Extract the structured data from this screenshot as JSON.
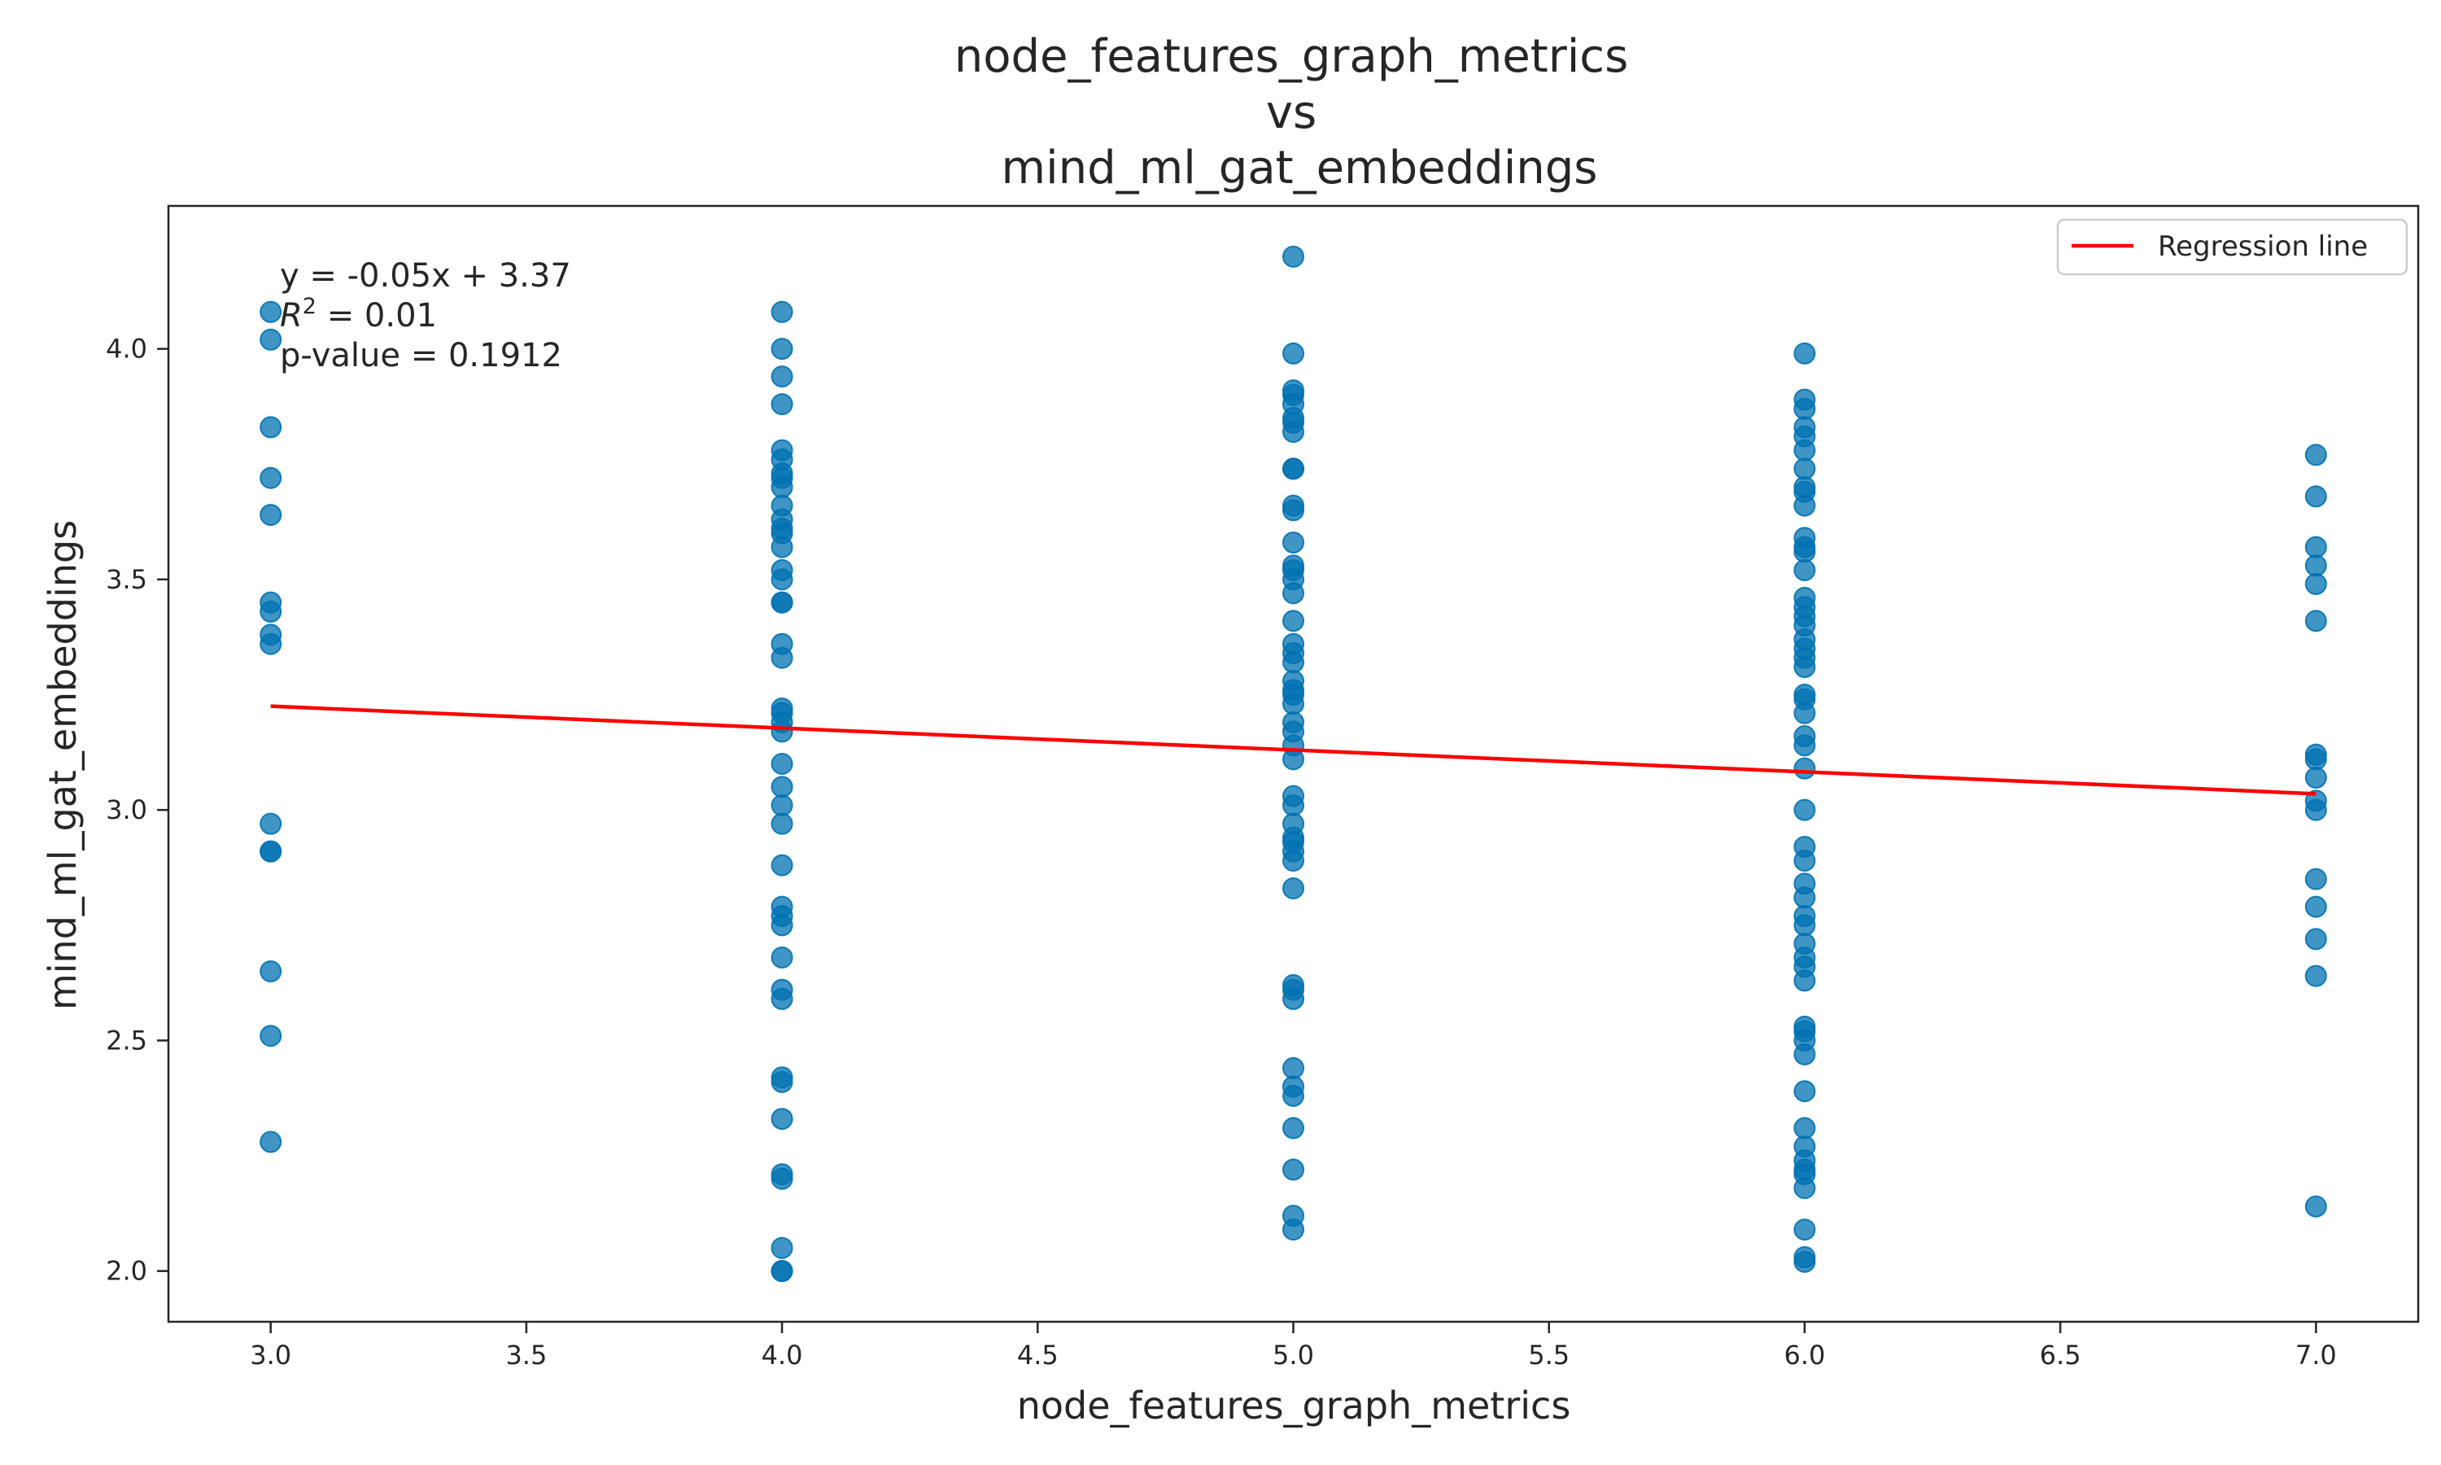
{
  "chart_data": {
    "type": "scatter",
    "title_lines": [
      "node_features_graph_metrics",
      "vs",
      "mind_ml_gat_embeddings"
    ],
    "xlabel": "node_features_graph_metrics",
    "ylabel": "mind_ml_gat_embeddings",
    "xlim": [
      2.8,
      7.2
    ],
    "ylim": [
      1.89,
      4.31
    ],
    "xticks": [
      "3.0",
      "3.5",
      "4.0",
      "4.5",
      "5.0",
      "5.5",
      "6.0",
      "6.5",
      "7.0"
    ],
    "yticks": [
      "2.0",
      "2.5",
      "3.0",
      "3.5",
      "4.0"
    ],
    "grid": false,
    "legend_position": "top-right",
    "annotation": {
      "equation": "y = -0.05x + 3.37",
      "r_squared_label": "R",
      "r_squared_sup": "2",
      "r_squared_value": " = 0.01",
      "p_value": "p-value = 0.1912"
    },
    "colors": {
      "points": "#0072B2",
      "regression": "#ff0000"
    },
    "regression": {
      "name": "Regression line",
      "points": [
        [
          3.0,
          3.225
        ],
        [
          7.0,
          3.035
        ]
      ]
    },
    "series": [
      {
        "x": 3.0,
        "y": [
          4.08,
          4.02,
          3.83,
          3.72,
          3.64,
          3.45,
          3.43,
          3.38,
          3.36,
          2.97,
          2.91,
          2.91,
          2.65,
          2.51,
          2.28
        ]
      },
      {
        "x": 4.0,
        "y": [
          4.08,
          4.0,
          3.94,
          3.88,
          3.78,
          3.76,
          3.73,
          3.72,
          3.7,
          3.66,
          3.63,
          3.61,
          3.6,
          3.57,
          3.52,
          3.5,
          3.45,
          3.45,
          3.36,
          3.33,
          3.22,
          3.21,
          3.19,
          3.17,
          3.1,
          3.05,
          3.01,
          2.97,
          2.88,
          2.79,
          2.77,
          2.75,
          2.68,
          2.61,
          2.59,
          2.42,
          2.41,
          2.33,
          2.21,
          2.2,
          2.05,
          2.0,
          2.0
        ]
      },
      {
        "x": 5.0,
        "y": [
          4.2,
          3.99,
          3.91,
          3.9,
          3.88,
          3.85,
          3.84,
          3.82,
          3.74,
          3.74,
          3.66,
          3.65,
          3.58,
          3.53,
          3.52,
          3.5,
          3.47,
          3.41,
          3.36,
          3.34,
          3.32,
          3.28,
          3.26,
          3.25,
          3.23,
          3.19,
          3.17,
          3.14,
          3.11,
          3.03,
          3.01,
          2.97,
          2.94,
          2.93,
          2.91,
          2.89,
          2.83,
          2.62,
          2.61,
          2.59,
          2.44,
          2.4,
          2.38,
          2.31,
          2.22,
          2.12,
          2.09
        ]
      },
      {
        "x": 6.0,
        "y": [
          3.99,
          3.89,
          3.87,
          3.83,
          3.81,
          3.78,
          3.74,
          3.7,
          3.69,
          3.66,
          3.59,
          3.57,
          3.56,
          3.52,
          3.46,
          3.44,
          3.42,
          3.4,
          3.37,
          3.35,
          3.33,
          3.31,
          3.25,
          3.24,
          3.21,
          3.16,
          3.14,
          3.09,
          3.0,
          2.92,
          2.89,
          2.84,
          2.81,
          2.77,
          2.75,
          2.71,
          2.68,
          2.66,
          2.63,
          2.53,
          2.52,
          2.5,
          2.47,
          2.39,
          2.31,
          2.27,
          2.24,
          2.22,
          2.21,
          2.18,
          2.09,
          2.03,
          2.02
        ]
      },
      {
        "x": 7.0,
        "y": [
          3.77,
          3.68,
          3.57,
          3.53,
          3.49,
          3.41,
          3.12,
          3.11,
          3.07,
          3.02,
          3.0,
          2.85,
          2.79,
          2.72,
          2.64,
          2.14
        ]
      }
    ]
  }
}
